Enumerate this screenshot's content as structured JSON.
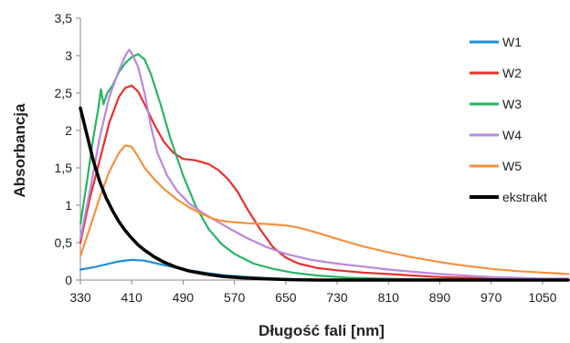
{
  "chart_data": {
    "type": "line",
    "title": "",
    "xlabel": "Długość fali [nm]",
    "ylabel": "Absorbancja",
    "xlim": [
      330,
      1090
    ],
    "ylim": [
      0,
      3.5
    ],
    "x_ticks": [
      330,
      410,
      490,
      570,
      650,
      730,
      810,
      890,
      970,
      1050
    ],
    "x_tick_labels": [
      "330",
      "410",
      "490",
      "570",
      "650",
      "730",
      "810",
      "890",
      "970",
      "1050"
    ],
    "y_ticks": [
      0,
      0.5,
      1,
      1.5,
      2,
      2.5,
      3,
      3.5
    ],
    "y_tick_labels": [
      "0",
      "0,5",
      "1",
      "1,5",
      "2",
      "2,5",
      "3",
      "3,5"
    ],
    "grid": false,
    "legend_position": "right",
    "series": [
      {
        "name": "W1",
        "color": "#1f8fd6",
        "points": [
          [
            330,
            0.14
          ],
          [
            350,
            0.17
          ],
          [
            370,
            0.21
          ],
          [
            390,
            0.25
          ],
          [
            410,
            0.27
          ],
          [
            430,
            0.26
          ],
          [
            450,
            0.22
          ],
          [
            470,
            0.18
          ],
          [
            500,
            0.13
          ],
          [
            530,
            0.09
          ],
          [
            560,
            0.06
          ],
          [
            600,
            0.035
          ],
          [
            650,
            0.015
          ],
          [
            700,
            0.005
          ],
          [
            750,
            0.0
          ],
          [
            1090,
            0.0
          ]
        ]
      },
      {
        "name": "W2",
        "color": "#e8302e",
        "points": [
          [
            330,
            0.5
          ],
          [
            345,
            1.1
          ],
          [
            360,
            1.6
          ],
          [
            375,
            2.1
          ],
          [
            390,
            2.45
          ],
          [
            400,
            2.57
          ],
          [
            410,
            2.6
          ],
          [
            420,
            2.52
          ],
          [
            430,
            2.35
          ],
          [
            445,
            2.08
          ],
          [
            460,
            1.85
          ],
          [
            475,
            1.7
          ],
          [
            490,
            1.62
          ],
          [
            510,
            1.6
          ],
          [
            530,
            1.55
          ],
          [
            545,
            1.47
          ],
          [
            560,
            1.35
          ],
          [
            575,
            1.18
          ],
          [
            590,
            0.95
          ],
          [
            610,
            0.68
          ],
          [
            630,
            0.44
          ],
          [
            650,
            0.3
          ],
          [
            670,
            0.22
          ],
          [
            700,
            0.16
          ],
          [
            730,
            0.13
          ],
          [
            770,
            0.1
          ],
          [
            810,
            0.08
          ],
          [
            850,
            0.06
          ],
          [
            890,
            0.04
          ],
          [
            930,
            0.03
          ],
          [
            970,
            0.02
          ],
          [
            1010,
            0.02
          ],
          [
            1050,
            0.01
          ],
          [
            1090,
            0.01
          ]
        ]
      },
      {
        "name": "W3",
        "color": "#27b563",
        "points": [
          [
            330,
            0.75
          ],
          [
            340,
            1.3
          ],
          [
            350,
            1.9
          ],
          [
            358,
            2.3
          ],
          [
            362,
            2.55
          ],
          [
            366,
            2.35
          ],
          [
            372,
            2.5
          ],
          [
            380,
            2.6
          ],
          [
            390,
            2.78
          ],
          [
            400,
            2.9
          ],
          [
            410,
            2.98
          ],
          [
            420,
            3.02
          ],
          [
            430,
            2.95
          ],
          [
            440,
            2.75
          ],
          [
            455,
            2.35
          ],
          [
            470,
            1.9
          ],
          [
            490,
            1.4
          ],
          [
            510,
            0.98
          ],
          [
            530,
            0.68
          ],
          [
            550,
            0.48
          ],
          [
            570,
            0.35
          ],
          [
            600,
            0.22
          ],
          [
            630,
            0.15
          ],
          [
            660,
            0.1
          ],
          [
            700,
            0.06
          ],
          [
            750,
            0.03
          ],
          [
            800,
            0.02
          ],
          [
            850,
            0.01
          ],
          [
            1090,
            0.0
          ]
        ]
      },
      {
        "name": "W4",
        "color": "#b889dc",
        "points": [
          [
            330,
            0.55
          ],
          [
            345,
            1.2
          ],
          [
            360,
            1.9
          ],
          [
            375,
            2.45
          ],
          [
            390,
            2.8
          ],
          [
            400,
            3.0
          ],
          [
            406,
            3.08
          ],
          [
            412,
            3.0
          ],
          [
            420,
            2.85
          ],
          [
            430,
            2.5
          ],
          [
            440,
            2.05
          ],
          [
            450,
            1.7
          ],
          [
            465,
            1.4
          ],
          [
            480,
            1.2
          ],
          [
            500,
            1.02
          ],
          [
            520,
            0.9
          ],
          [
            540,
            0.8
          ],
          [
            560,
            0.7
          ],
          [
            590,
            0.56
          ],
          [
            620,
            0.44
          ],
          [
            650,
            0.35
          ],
          [
            690,
            0.27
          ],
          [
            730,
            0.22
          ],
          [
            770,
            0.18
          ],
          [
            810,
            0.14
          ],
          [
            850,
            0.11
          ],
          [
            890,
            0.08
          ],
          [
            930,
            0.06
          ],
          [
            970,
            0.04
          ],
          [
            1010,
            0.03
          ],
          [
            1050,
            0.02
          ],
          [
            1090,
            0.02
          ]
        ]
      },
      {
        "name": "W5",
        "color": "#f5913e",
        "points": [
          [
            330,
            0.32
          ],
          [
            345,
            0.7
          ],
          [
            360,
            1.1
          ],
          [
            375,
            1.45
          ],
          [
            390,
            1.7
          ],
          [
            400,
            1.8
          ],
          [
            410,
            1.78
          ],
          [
            420,
            1.65
          ],
          [
            430,
            1.5
          ],
          [
            445,
            1.35
          ],
          [
            460,
            1.22
          ],
          [
            480,
            1.08
          ],
          [
            500,
            0.97
          ],
          [
            520,
            0.88
          ],
          [
            540,
            0.81
          ],
          [
            560,
            0.78
          ],
          [
            590,
            0.76
          ],
          [
            620,
            0.75
          ],
          [
            650,
            0.73
          ],
          [
            670,
            0.7
          ],
          [
            700,
            0.63
          ],
          [
            730,
            0.55
          ],
          [
            770,
            0.45
          ],
          [
            810,
            0.37
          ],
          [
            850,
            0.3
          ],
          [
            890,
            0.24
          ],
          [
            930,
            0.19
          ],
          [
            970,
            0.15
          ],
          [
            1010,
            0.12
          ],
          [
            1050,
            0.1
          ],
          [
            1090,
            0.08
          ]
        ]
      },
      {
        "name": "ekstrakt",
        "color": "#000000",
        "points": [
          [
            330,
            2.3
          ],
          [
            340,
            1.95
          ],
          [
            350,
            1.6
          ],
          [
            360,
            1.32
          ],
          [
            370,
            1.1
          ],
          [
            380,
            0.93
          ],
          [
            390,
            0.78
          ],
          [
            400,
            0.66
          ],
          [
            410,
            0.56
          ],
          [
            420,
            0.47
          ],
          [
            430,
            0.4
          ],
          [
            445,
            0.31
          ],
          [
            460,
            0.24
          ],
          [
            480,
            0.17
          ],
          [
            500,
            0.12
          ],
          [
            525,
            0.08
          ],
          [
            550,
            0.05
          ],
          [
            580,
            0.03
          ],
          [
            620,
            0.015
          ],
          [
            660,
            0.005
          ],
          [
            700,
            0.0
          ],
          [
            1090,
            0.0
          ]
        ]
      }
    ]
  }
}
